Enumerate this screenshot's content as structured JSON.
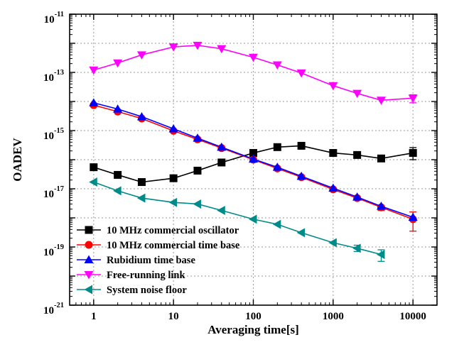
{
  "chart_data": {
    "type": "line",
    "xlabel": "Averaging time[s]",
    "ylabel": "OADEV",
    "x_scale": "log",
    "y_scale": "log",
    "xlim": [
      0.5,
      20000
    ],
    "ylim": [
      1e-21,
      1e-11
    ],
    "grid": true,
    "legend_position": "bottom-left",
    "x_ticks": [
      {
        "value": 1,
        "label": "1"
      },
      {
        "value": 10,
        "label": "10"
      },
      {
        "value": 100,
        "label": "100"
      },
      {
        "value": 1000,
        "label": "1000"
      },
      {
        "value": 10000,
        "label": "10000"
      }
    ],
    "y_ticks": [
      {
        "value": 1e-11,
        "base": "10",
        "exp": "-11"
      },
      {
        "value": 1e-13,
        "base": "10",
        "exp": "-13"
      },
      {
        "value": 1e-15,
        "base": "10",
        "exp": "-15"
      },
      {
        "value": 1e-17,
        "base": "10",
        "exp": "-17"
      },
      {
        "value": 1e-19,
        "base": "10",
        "exp": "-19"
      },
      {
        "value": 1e-21,
        "base": "10",
        "exp": "-21"
      }
    ],
    "series": [
      {
        "name": "10 MHz commercial oscillator",
        "color": "#000000",
        "marker": "square",
        "x": [
          1,
          2,
          4,
          10,
          20,
          40,
          100,
          200,
          400,
          1000,
          2000,
          4000,
          10000
        ],
        "y": [
          5.5e-17,
          3e-17,
          1.7e-17,
          2.3e-17,
          4.2e-17,
          8e-17,
          1.7e-16,
          2.7e-16,
          3e-16,
          1.7e-16,
          1.45e-16,
          1.1e-16,
          1.7e-16
        ],
        "err_low": [
          null,
          null,
          null,
          null,
          null,
          null,
          null,
          2.2e-16,
          null,
          null,
          null,
          null,
          1e-16
        ],
        "err_high": [
          null,
          null,
          null,
          null,
          null,
          null,
          null,
          3.3e-16,
          null,
          null,
          null,
          null,
          2.6e-16
        ]
      },
      {
        "name": "10 MHz commercial time base",
        "color": "#ff0000",
        "marker": "circle",
        "x": [
          1,
          2,
          4,
          10,
          20,
          40,
          100,
          200,
          400,
          1000,
          2000,
          4000,
          10000
        ],
        "y": [
          7.5e-15,
          4.5e-15,
          2.6e-15,
          9.8e-16,
          5e-16,
          2.5e-16,
          1e-16,
          5e-17,
          2.5e-17,
          9.5e-18,
          4.8e-18,
          2.3e-18,
          9e-19
        ],
        "err_low": [
          null,
          null,
          null,
          null,
          null,
          null,
          null,
          null,
          null,
          null,
          null,
          1.8e-18,
          3.5e-19
        ],
        "err_high": [
          null,
          null,
          null,
          null,
          null,
          null,
          null,
          null,
          null,
          null,
          null,
          null,
          1.6e-18
        ]
      },
      {
        "name": "Rubidium time base",
        "color": "#0000ff",
        "marker": "triangle-up",
        "x": [
          1,
          2,
          4,
          10,
          20,
          40,
          100,
          200,
          400,
          1000,
          2000,
          4000,
          10000
        ],
        "y": [
          9e-15,
          5.5e-15,
          3e-15,
          1.15e-15,
          5.5e-16,
          2.7e-16,
          1.05e-16,
          5.5e-17,
          2.7e-17,
          1.05e-17,
          5.2e-18,
          2.5e-18,
          1.05e-18
        ],
        "err_low": [
          null,
          null,
          null,
          null,
          null,
          null,
          null,
          null,
          null,
          null,
          null,
          null,
          null
        ],
        "err_high": [
          null,
          null,
          null,
          null,
          null,
          null,
          null,
          null,
          null,
          null,
          null,
          null,
          null
        ]
      },
      {
        "name": "Free-running link",
        "color": "#ff00ff",
        "marker": "triangle-down",
        "x": [
          1,
          2,
          4,
          10,
          20,
          40,
          100,
          200,
          400,
          1000,
          2000,
          4000,
          10000
        ],
        "y": [
          1.2e-13,
          2.1e-13,
          4e-13,
          7.5e-13,
          8.5e-13,
          6.5e-13,
          3.3e-13,
          1.8e-13,
          9.5e-14,
          3.5e-14,
          1.9e-14,
          1.1e-14,
          1.3e-14
        ],
        "err_low": [
          null,
          null,
          null,
          null,
          null,
          null,
          null,
          null,
          null,
          null,
          null,
          null,
          9e-15
        ],
        "err_high": [
          null,
          null,
          null,
          null,
          null,
          null,
          null,
          null,
          null,
          null,
          null,
          null,
          1.7e-14
        ]
      },
      {
        "name": "System noise floor",
        "color": "#008b8b",
        "marker": "triangle-left",
        "x": [
          1,
          2,
          4,
          10,
          20,
          40,
          100,
          200,
          400,
          1000,
          2000,
          4000
        ],
        "y": [
          1.7e-17,
          8.5e-18,
          4.8e-18,
          3.4e-18,
          3e-18,
          1.8e-18,
          9e-19,
          6e-19,
          3.1e-19,
          1.4e-19,
          9e-20,
          5.5e-20
        ],
        "err_low": [
          null,
          null,
          null,
          null,
          null,
          null,
          null,
          null,
          null,
          null,
          7e-20,
          3.2e-20
        ],
        "err_high": [
          null,
          null,
          null,
          null,
          null,
          null,
          null,
          null,
          null,
          null,
          1.15e-19,
          8e-20
        ]
      }
    ]
  }
}
